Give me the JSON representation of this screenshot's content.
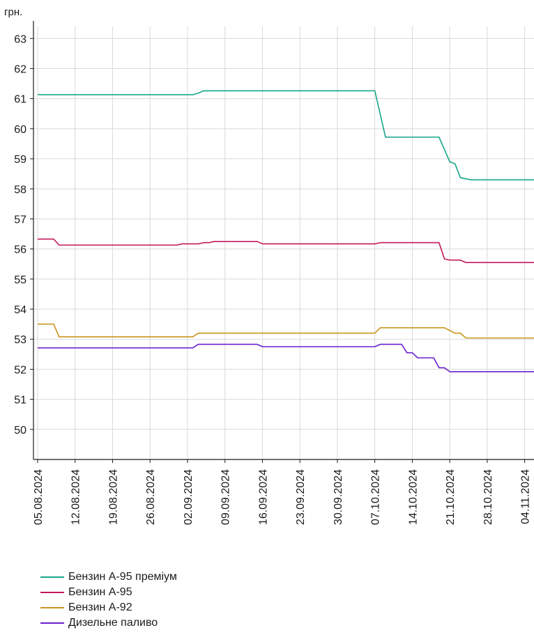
{
  "chart_data": {
    "type": "line",
    "ylabel": "грн.",
    "ylim": [
      49,
      63.4
    ],
    "yticks": [
      50,
      51,
      52,
      53,
      54,
      55,
      56,
      57,
      58,
      59,
      60,
      61,
      62,
      63
    ],
    "xlim": [
      "2024-08-05",
      "2024-11-06"
    ],
    "xticks": [
      "05.08.2024",
      "12.08.2024",
      "19.08.2024",
      "26.08.2024",
      "02.09.2024",
      "09.09.2024",
      "16.09.2024",
      "23.09.2024",
      "30.09.2024",
      "07.10.2024",
      "14.10.2024",
      "21.10.2024",
      "28.10.2024",
      "04.11.2024"
    ],
    "grid": true,
    "legend_position": "bottom-left",
    "series": [
      {
        "name": "Бензин А-95 преміум",
        "color": "#17a589",
        "points": [
          [
            "2024-08-05",
            61.13
          ],
          [
            "2024-09-03",
            61.13
          ],
          [
            "2024-09-04",
            61.18
          ],
          [
            "2024-09-05",
            61.26
          ],
          [
            "2024-10-07",
            61.26
          ],
          [
            "2024-10-09",
            59.72
          ],
          [
            "2024-10-19",
            59.72
          ],
          [
            "2024-10-21",
            58.9
          ],
          [
            "2024-10-22",
            58.83
          ],
          [
            "2024-10-23",
            58.37
          ],
          [
            "2024-10-25",
            58.3
          ],
          [
            "2024-11-06",
            58.3
          ]
        ]
      },
      {
        "name": "Бензин А-95",
        "color": "#c2185b",
        "points": [
          [
            "2024-08-05",
            56.33
          ],
          [
            "2024-08-08",
            56.33
          ],
          [
            "2024-08-09",
            56.13
          ],
          [
            "2024-08-31",
            56.13
          ],
          [
            "2024-09-01",
            56.17
          ],
          [
            "2024-09-04",
            56.17
          ],
          [
            "2024-09-05",
            56.21
          ],
          [
            "2024-09-06",
            56.21
          ],
          [
            "2024-09-07",
            56.25
          ],
          [
            "2024-09-15",
            56.25
          ],
          [
            "2024-09-16",
            56.17
          ],
          [
            "2024-10-07",
            56.17
          ],
          [
            "2024-10-08",
            56.21
          ],
          [
            "2024-10-19",
            56.21
          ],
          [
            "2024-10-20",
            55.67
          ],
          [
            "2024-10-21",
            55.63
          ],
          [
            "2024-10-23",
            55.63
          ],
          [
            "2024-10-24",
            55.55
          ],
          [
            "2024-11-06",
            55.55
          ]
        ]
      },
      {
        "name": "Бензин А-92",
        "color": "#c9961a",
        "points": [
          [
            "2024-08-05",
            53.5
          ],
          [
            "2024-08-08",
            53.5
          ],
          [
            "2024-08-09",
            53.08
          ],
          [
            "2024-09-03",
            53.08
          ],
          [
            "2024-09-04",
            53.2
          ],
          [
            "2024-10-07",
            53.2
          ],
          [
            "2024-10-08",
            53.38
          ],
          [
            "2024-10-20",
            53.38
          ],
          [
            "2024-10-22",
            53.2
          ],
          [
            "2024-10-23",
            53.2
          ],
          [
            "2024-10-24",
            53.04
          ],
          [
            "2024-11-06",
            53.04
          ]
        ]
      },
      {
        "name": "Дизельне паливо",
        "color": "#6a1ecf",
        "points": [
          [
            "2024-08-05",
            52.71
          ],
          [
            "2024-09-03",
            52.71
          ],
          [
            "2024-09-04",
            52.83
          ],
          [
            "2024-09-15",
            52.83
          ],
          [
            "2024-09-16",
            52.75
          ],
          [
            "2024-10-07",
            52.75
          ],
          [
            "2024-10-08",
            52.83
          ],
          [
            "2024-10-12",
            52.83
          ],
          [
            "2024-10-13",
            52.55
          ],
          [
            "2024-10-14",
            52.55
          ],
          [
            "2024-10-15",
            52.38
          ],
          [
            "2024-10-18",
            52.38
          ],
          [
            "2024-10-19",
            52.05
          ],
          [
            "2024-10-20",
            52.05
          ],
          [
            "2024-10-21",
            51.92
          ],
          [
            "2024-11-06",
            51.92
          ]
        ]
      }
    ]
  }
}
